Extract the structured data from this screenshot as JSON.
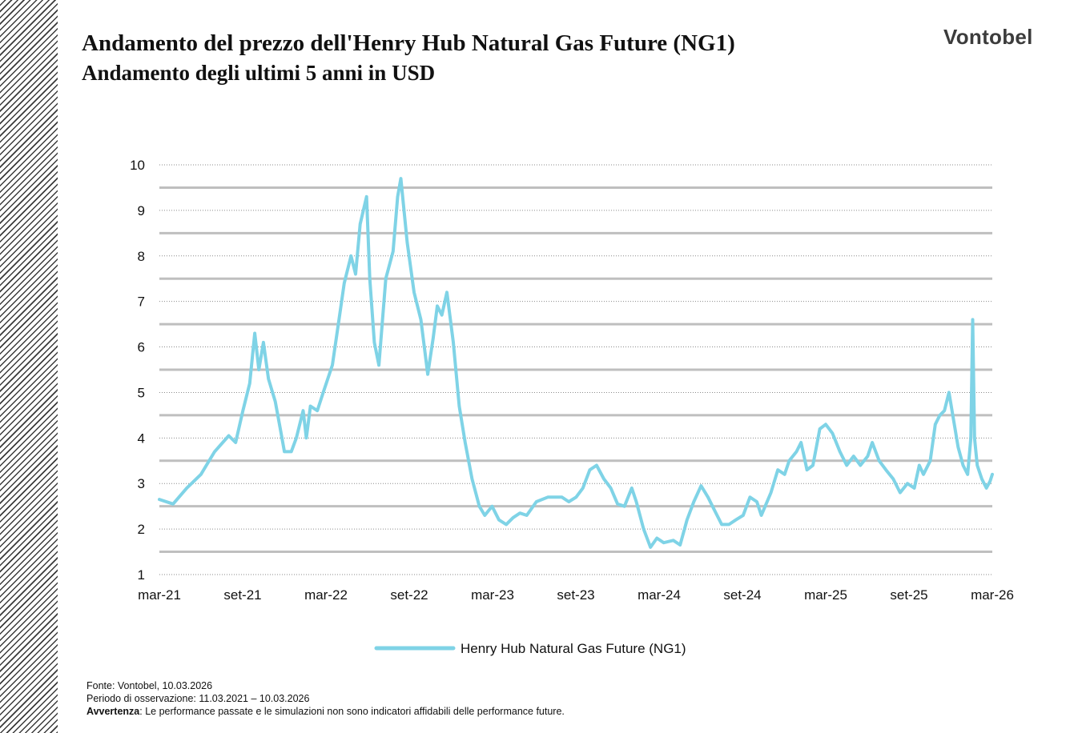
{
  "header": {
    "title": "Andamento del prezzo dell'Henry Hub Natural Gas Future (NG1)",
    "subtitle": "Andamento degli ultimi 5 anni in USD",
    "logo": "Vontobel"
  },
  "colors": {
    "series": "#7fd3e6",
    "grid": "#bfbfbf",
    "stripe": "#3a3a3a"
  },
  "chart_data": {
    "type": "line",
    "title": "Andamento del prezzo dell'Henry Hub Natural Gas Future (NG1)",
    "subtitle": "Andamento degli ultimi 5 anni in USD",
    "ylim": [
      1,
      10
    ],
    "yticks": [
      "1",
      "2",
      "3",
      "4",
      "5",
      "6",
      "7",
      "8",
      "9",
      "10"
    ],
    "xticks": [
      "mar-21",
      "set-21",
      "mar-22",
      "set-22",
      "mar-23",
      "set-23",
      "mar-24",
      "set-24",
      "mar-25",
      "set-25",
      "mar-26"
    ],
    "xlim": [
      "2021-03-11",
      "2026-03-10"
    ],
    "grid": true,
    "legend_position": "bottom-center",
    "series": [
      {
        "name": "Henry Hub Natural Gas Future (NG1)",
        "points": [
          [
            "2021-03-11",
            2.65
          ],
          [
            "2021-04-10",
            2.55
          ],
          [
            "2021-05-10",
            2.9
          ],
          [
            "2021-06-10",
            3.2
          ],
          [
            "2021-07-10",
            3.7
          ],
          [
            "2021-08-10",
            4.05
          ],
          [
            "2021-08-25",
            3.9
          ],
          [
            "2021-09-10",
            4.6
          ],
          [
            "2021-09-25",
            5.2
          ],
          [
            "2021-10-06",
            6.3
          ],
          [
            "2021-10-15",
            5.5
          ],
          [
            "2021-10-25",
            6.1
          ],
          [
            "2021-11-05",
            5.3
          ],
          [
            "2021-11-20",
            4.8
          ],
          [
            "2021-12-01",
            4.2
          ],
          [
            "2021-12-10",
            3.7
          ],
          [
            "2021-12-25",
            3.7
          ],
          [
            "2022-01-05",
            4.0
          ],
          [
            "2022-01-20",
            4.6
          ],
          [
            "2022-01-27",
            4.0
          ],
          [
            "2022-02-05",
            4.7
          ],
          [
            "2022-02-20",
            4.6
          ],
          [
            "2022-03-05",
            5.0
          ],
          [
            "2022-03-25",
            5.6
          ],
          [
            "2022-04-10",
            6.7
          ],
          [
            "2022-04-20",
            7.4
          ],
          [
            "2022-05-05",
            8.0
          ],
          [
            "2022-05-15",
            7.6
          ],
          [
            "2022-05-25",
            8.7
          ],
          [
            "2022-06-08",
            9.3
          ],
          [
            "2022-06-15",
            7.5
          ],
          [
            "2022-06-25",
            6.1
          ],
          [
            "2022-07-05",
            5.6
          ],
          [
            "2022-07-20",
            7.5
          ],
          [
            "2022-08-05",
            8.1
          ],
          [
            "2022-08-15",
            9.3
          ],
          [
            "2022-08-22",
            9.7
          ],
          [
            "2022-09-05",
            8.3
          ],
          [
            "2022-09-20",
            7.2
          ],
          [
            "2022-10-05",
            6.6
          ],
          [
            "2022-10-20",
            5.4
          ],
          [
            "2022-11-01",
            6.2
          ],
          [
            "2022-11-10",
            6.9
          ],
          [
            "2022-11-20",
            6.7
          ],
          [
            "2022-12-01",
            7.2
          ],
          [
            "2022-12-15",
            6.1
          ],
          [
            "2022-12-28",
            4.7
          ],
          [
            "2023-01-10",
            3.9
          ],
          [
            "2023-01-25",
            3.1
          ],
          [
            "2023-02-10",
            2.5
          ],
          [
            "2023-02-22",
            2.3
          ],
          [
            "2023-03-10",
            2.5
          ],
          [
            "2023-03-25",
            2.2
          ],
          [
            "2023-04-10",
            2.1
          ],
          [
            "2023-04-25",
            2.25
          ],
          [
            "2023-05-10",
            2.35
          ],
          [
            "2023-05-25",
            2.3
          ],
          [
            "2023-06-15",
            2.6
          ],
          [
            "2023-07-10",
            2.7
          ],
          [
            "2023-08-10",
            2.7
          ],
          [
            "2023-08-25",
            2.6
          ],
          [
            "2023-09-10",
            2.7
          ],
          [
            "2023-09-25",
            2.9
          ],
          [
            "2023-10-10",
            3.3
          ],
          [
            "2023-10-25",
            3.4
          ],
          [
            "2023-11-10",
            3.1
          ],
          [
            "2023-11-25",
            2.9
          ],
          [
            "2023-12-10",
            2.55
          ],
          [
            "2023-12-25",
            2.5
          ],
          [
            "2024-01-10",
            2.9
          ],
          [
            "2024-01-20",
            2.6
          ],
          [
            "2024-02-05",
            2.0
          ],
          [
            "2024-02-20",
            1.6
          ],
          [
            "2024-03-05",
            1.8
          ],
          [
            "2024-03-20",
            1.7
          ],
          [
            "2024-04-10",
            1.75
          ],
          [
            "2024-04-25",
            1.65
          ],
          [
            "2024-05-10",
            2.2
          ],
          [
            "2024-05-25",
            2.6
          ],
          [
            "2024-06-10",
            2.95
          ],
          [
            "2024-06-25",
            2.7
          ],
          [
            "2024-07-10",
            2.4
          ],
          [
            "2024-07-25",
            2.1
          ],
          [
            "2024-08-10",
            2.1
          ],
          [
            "2024-08-25",
            2.2
          ],
          [
            "2024-09-10",
            2.3
          ],
          [
            "2024-09-25",
            2.7
          ],
          [
            "2024-10-10",
            2.6
          ],
          [
            "2024-10-20",
            2.3
          ],
          [
            "2024-11-10",
            2.8
          ],
          [
            "2024-11-25",
            3.3
          ],
          [
            "2024-12-10",
            3.2
          ],
          [
            "2024-12-20",
            3.5
          ],
          [
            "2025-01-05",
            3.7
          ],
          [
            "2025-01-15",
            3.9
          ],
          [
            "2025-01-28",
            3.3
          ],
          [
            "2025-02-10",
            3.4
          ],
          [
            "2025-02-25",
            4.2
          ],
          [
            "2025-03-10",
            4.3
          ],
          [
            "2025-03-25",
            4.1
          ],
          [
            "2025-04-10",
            3.7
          ],
          [
            "2025-04-25",
            3.4
          ],
          [
            "2025-05-10",
            3.6
          ],
          [
            "2025-05-25",
            3.4
          ],
          [
            "2025-06-10",
            3.6
          ],
          [
            "2025-06-20",
            3.9
          ],
          [
            "2025-07-05",
            3.5
          ],
          [
            "2025-07-20",
            3.3
          ],
          [
            "2025-08-05",
            3.1
          ],
          [
            "2025-08-20",
            2.8
          ],
          [
            "2025-09-05",
            3.0
          ],
          [
            "2025-09-20",
            2.9
          ],
          [
            "2025-10-01",
            3.4
          ],
          [
            "2025-10-10",
            3.2
          ],
          [
            "2025-10-25",
            3.5
          ],
          [
            "2025-11-05",
            4.3
          ],
          [
            "2025-11-15",
            4.5
          ],
          [
            "2025-11-25",
            4.6
          ],
          [
            "2025-12-05",
            5.0
          ],
          [
            "2025-12-15",
            4.4
          ],
          [
            "2025-12-25",
            3.8
          ],
          [
            "2026-01-05",
            3.4
          ],
          [
            "2026-01-15",
            3.2
          ],
          [
            "2026-01-22",
            4.0
          ],
          [
            "2026-01-26",
            6.6
          ],
          [
            "2026-01-30",
            4.0
          ],
          [
            "2026-02-05",
            3.4
          ],
          [
            "2026-02-15",
            3.1
          ],
          [
            "2026-02-25",
            2.9
          ],
          [
            "2026-03-05",
            3.05
          ],
          [
            "2026-03-10",
            3.2
          ]
        ]
      }
    ]
  },
  "footer": {
    "source": "Fonte: Vontobel, 10.03.2026",
    "period": "Periodo di osservazione: 11.03.2021 – 10.03.2026",
    "warning_label": "Avvertenza",
    "warning_text": ": Le performance passate e le simulazioni non sono indicatori affidabili delle performance future."
  }
}
